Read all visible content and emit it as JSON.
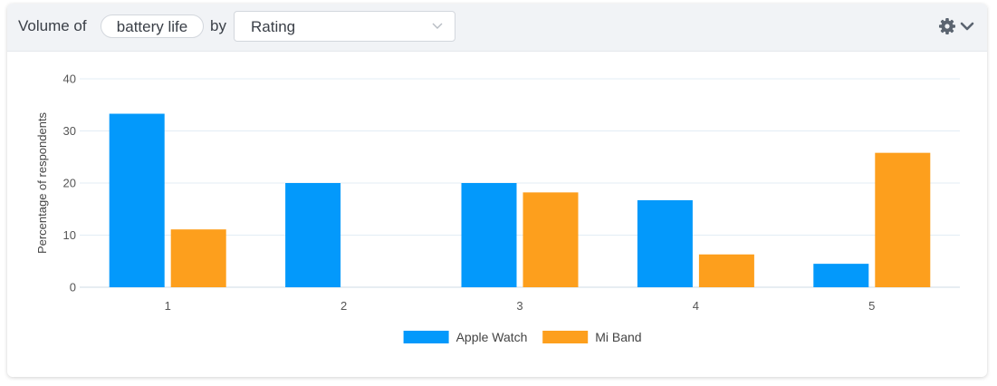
{
  "header": {
    "prefix": "Volume of",
    "topic": "battery life",
    "by": "by",
    "group_by": "Rating"
  },
  "icons": {
    "settings": "gear-icon",
    "settings_dropdown": "chevron-down-icon",
    "select_dropdown": "chevron-down-icon"
  },
  "chart_data": {
    "type": "bar",
    "categories": [
      "1",
      "2",
      "3",
      "4",
      "5"
    ],
    "series": [
      {
        "name": "Apple Watch",
        "color": "#0399fb",
        "values": [
          33.3,
          20.0,
          20.0,
          16.7,
          4.5
        ]
      },
      {
        "name": "Mi Band",
        "color": "#fd9f1d",
        "values": [
          11.1,
          0,
          18.2,
          6.3,
          25.8
        ]
      }
    ],
    "ylabel": "Percentage of respondents",
    "xlabel": "",
    "ylim": [
      0,
      40
    ],
    "yticks": [
      0,
      10,
      20,
      30,
      40
    ],
    "grid": true,
    "legend": "bottom-center"
  }
}
